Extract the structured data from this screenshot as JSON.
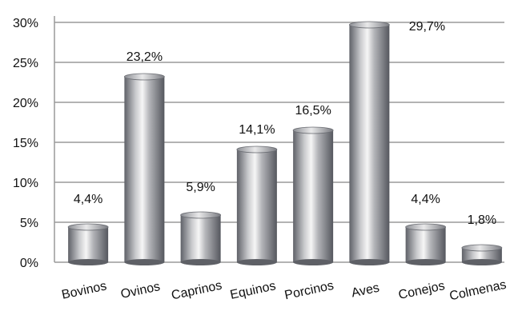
{
  "chart_data": {
    "type": "bar",
    "title": "",
    "xlabel": "",
    "ylabel": "",
    "categories": [
      "Bovinos",
      "Ovinos",
      "Caprinos",
      "Equinos",
      "Porcinos",
      "Aves",
      "Conejos",
      "Colmenas"
    ],
    "values": [
      4.4,
      23.2,
      5.9,
      14.1,
      16.5,
      29.7,
      4.4,
      1.8
    ],
    "data_labels": [
      "4,4%",
      "23,2%",
      "5,9%",
      "14,1%",
      "16,5%",
      "29,7%",
      "4,4%",
      "1,8%"
    ],
    "ylim": [
      0,
      30
    ],
    "yticks": [
      0,
      5,
      10,
      15,
      20,
      25,
      30
    ],
    "ytick_labels": [
      "0%",
      "5%",
      "10%",
      "15%",
      "20%",
      "25%",
      "30%"
    ],
    "grid": true,
    "legend": "none",
    "colors": {
      "bar_dark": "#6e7078",
      "bar_light": "#f4f4f4",
      "grid": "#9a9a9a"
    }
  }
}
